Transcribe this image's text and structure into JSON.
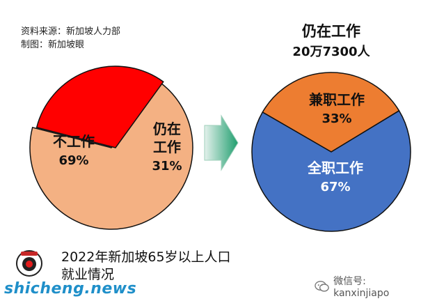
{
  "header": {
    "source_line": "资料来源：新加坡人力部",
    "chart_by_line": "制图：新加坡眼"
  },
  "chart_data": [
    {
      "type": "pie",
      "labels": [
        "不工作",
        "仍在工作"
      ],
      "values": [
        69,
        31
      ],
      "value_labels": [
        "69%",
        "31%"
      ],
      "colors": [
        "#f4b183",
        "#ff0000"
      ]
    },
    {
      "type": "pie",
      "title": "仍在工作",
      "subtitle": "20万7300人",
      "labels": [
        "兼职工作",
        "全职工作"
      ],
      "values": [
        33,
        67
      ],
      "value_labels": [
        "33%",
        "67%"
      ],
      "colors": [
        "#ed7d31",
        "#4472c4"
      ]
    }
  ],
  "arrow": {
    "color_start": "#e4f1ec",
    "color_end": "#1f9e6e"
  },
  "caption": {
    "line1": "2022年新加坡65岁以上人口",
    "line2": "就业情况"
  },
  "footer": {
    "site": "shicheng.news",
    "wechat_label": "微信号: kanxinjiapo",
    "logo_icon": "shicheng-logo-icon",
    "wechat_icon": "wechat-icon"
  }
}
